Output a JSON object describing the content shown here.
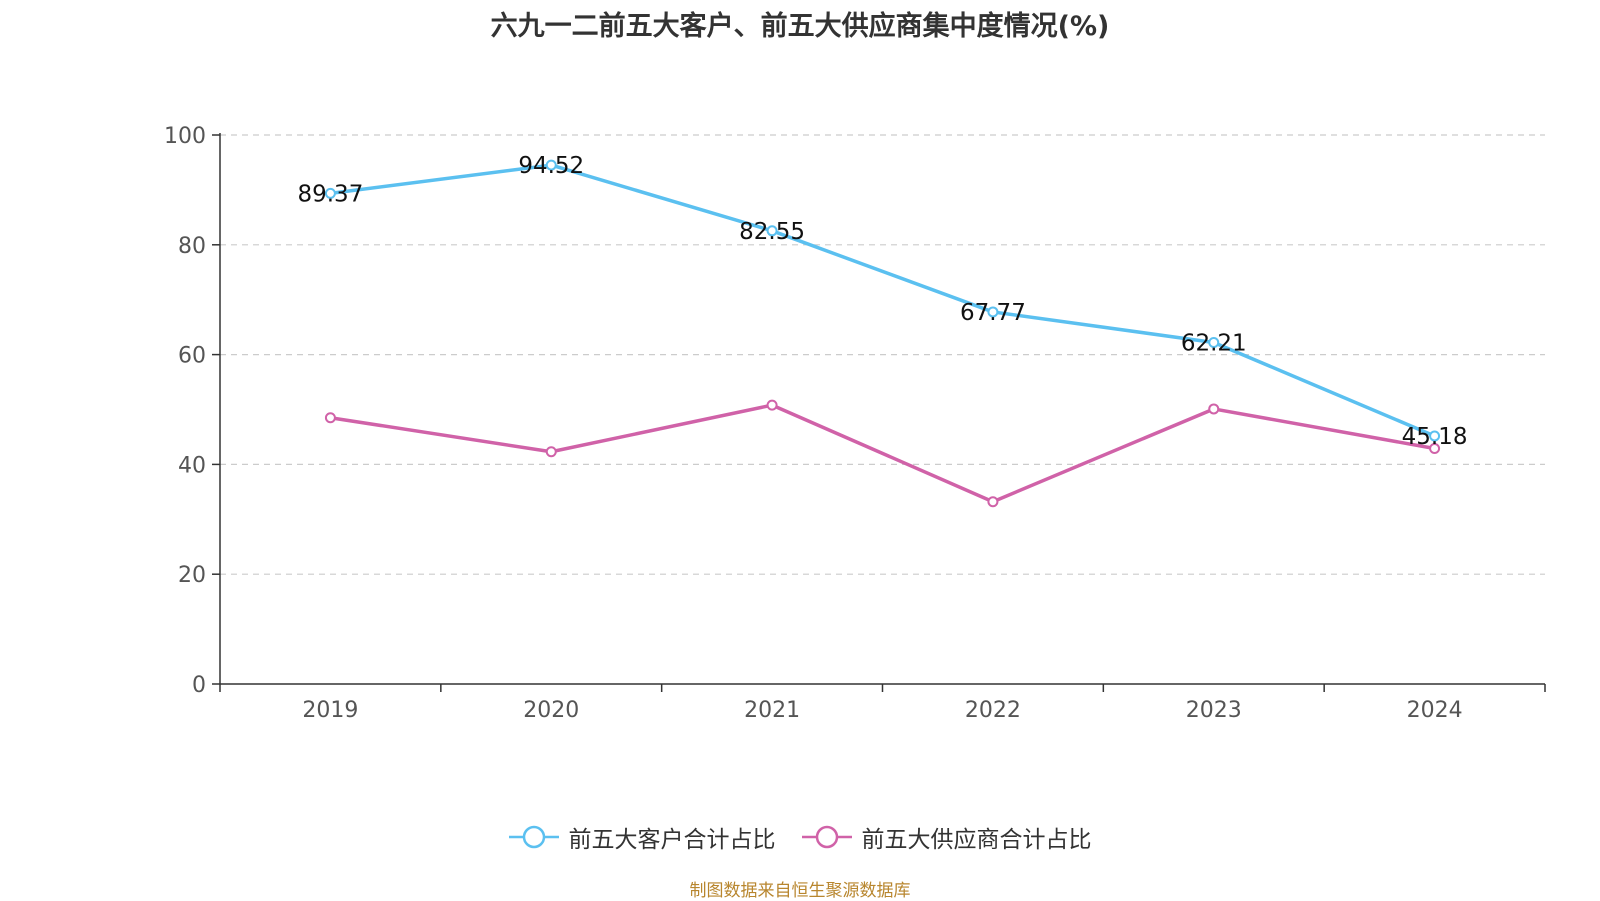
{
  "chart_data": {
    "type": "line",
    "title": "六九一二前五大客户、前五大供应商集中度情况(%)",
    "categories": [
      "2019",
      "2020",
      "2021",
      "2022",
      "2023",
      "2024"
    ],
    "ylim": [
      0,
      100
    ],
    "yticks": [
      0,
      20,
      40,
      60,
      80,
      100
    ],
    "grid": true,
    "legend_position": "bottom",
    "series": [
      {
        "name": "前五大客户合计占比",
        "color": "#5bc0f0",
        "values": [
          89.37,
          94.52,
          82.55,
          67.77,
          62.21,
          45.18
        ],
        "labels": [
          "89.37",
          "94.52",
          "82.55",
          "67.77",
          "62.21",
          "45.18"
        ]
      },
      {
        "name": "前五大供应商合计占比",
        "color": "#d062a8",
        "values": [
          48.5,
          42.3,
          50.8,
          33.2,
          50.1,
          42.9
        ],
        "labels": []
      }
    ],
    "source": "制图数据来自恒生聚源数据库"
  }
}
